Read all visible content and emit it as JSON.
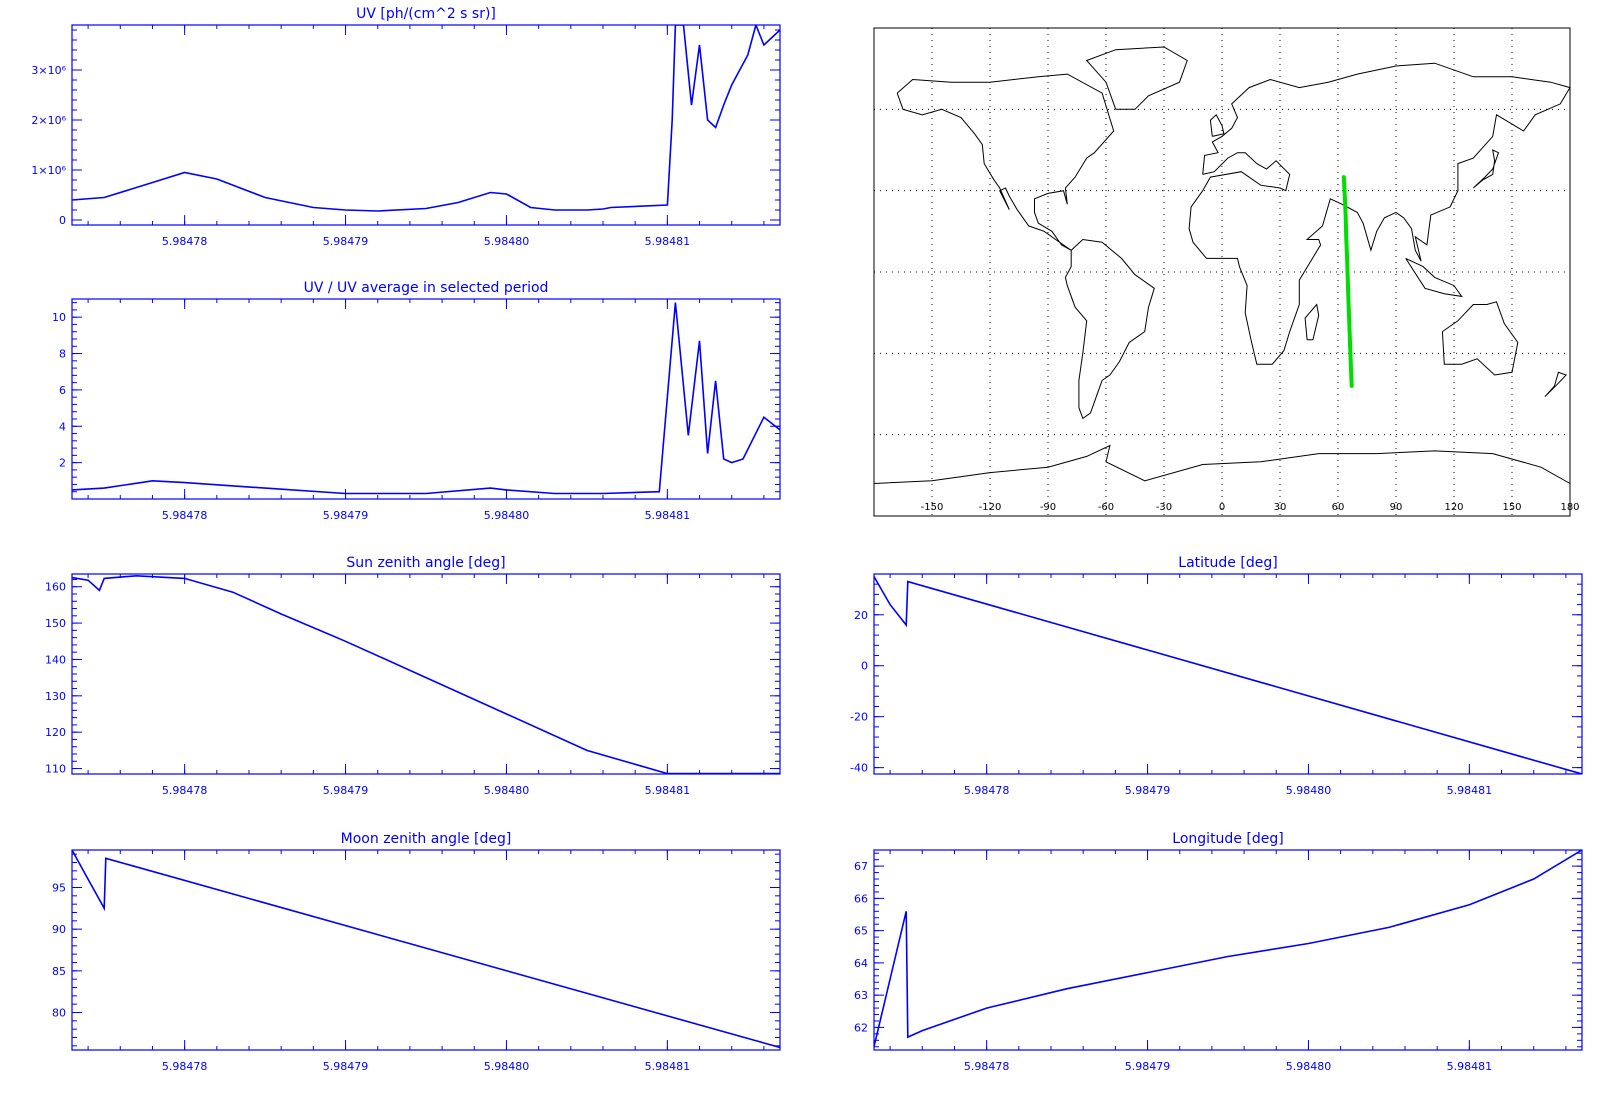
{
  "colors": {
    "axis": "#0000ff",
    "series": "#0000ff",
    "track": "#00dd00",
    "map": "#000000"
  },
  "chart_data": [
    {
      "type": "line",
      "title": "UV [ph/(cm^2 s sr)]",
      "xlim": [
        5.984773,
        5.984817
      ],
      "ylim": [
        -100000,
        3900000
      ],
      "xticks": [
        "5.98478",
        "5.98479",
        "5.98480",
        "5.98481"
      ],
      "xtick_values": [
        5.98478,
        5.98479,
        5.9848,
        5.98481
      ],
      "yticks": [
        "0",
        "1×10⁶",
        "2×10⁶",
        "3×10⁶"
      ],
      "ytick_values": [
        0,
        1000000,
        2000000,
        3000000
      ],
      "series": [
        {
          "x": [
            5.984773,
            5.984775,
            5.984778,
            5.98478,
            5.984782,
            5.984785,
            5.984788,
            5.98479,
            5.984792,
            5.984795,
            5.984797,
            5.984799,
            5.9848,
            5.9848015,
            5.984803,
            5.984805,
            5.984806,
            5.9848065,
            5.98481,
            5.9848103,
            5.9848105,
            5.984811,
            5.9848115,
            5.984812,
            5.9848125,
            5.984813,
            5.9848135,
            5.984814,
            5.984815,
            5.9848155,
            5.984816,
            5.984817
          ],
          "y": [
            400000,
            450000,
            750000,
            950000,
            820000,
            450000,
            250000,
            200000,
            180000,
            230000,
            350000,
            550000,
            520000,
            250000,
            200000,
            200000,
            220000,
            250000,
            300000,
            2000000,
            3900000,
            3900000,
            2300000,
            3500000,
            2000000,
            1850000,
            2300000,
            2700000,
            3300000,
            3900000,
            3500000,
            3800000
          ]
        }
      ]
    },
    {
      "type": "line",
      "title": "UV / UV average in selected period",
      "xlim": [
        5.984773,
        5.984817
      ],
      "ylim": [
        0,
        11
      ],
      "xticks": [
        "5.98478",
        "5.98479",
        "5.98480",
        "5.98481"
      ],
      "xtick_values": [
        5.98478,
        5.98479,
        5.9848,
        5.98481
      ],
      "yticks": [
        "2",
        "4",
        "6",
        "8",
        "10"
      ],
      "ytick_values": [
        2,
        4,
        6,
        8,
        10
      ],
      "series": [
        {
          "x": [
            5.984773,
            5.984775,
            5.984778,
            5.98478,
            5.984785,
            5.98479,
            5.984795,
            5.984799,
            5.9848,
            5.984803,
            5.984806,
            5.9848095,
            5.9848105,
            5.9848113,
            5.984812,
            5.9848125,
            5.984813,
            5.9848135,
            5.984814,
            5.9848147,
            5.984816,
            5.984817
          ],
          "y": [
            0.5,
            0.6,
            1.0,
            0.9,
            0.6,
            0.3,
            0.3,
            0.6,
            0.5,
            0.3,
            0.3,
            0.4,
            10.8,
            3.5,
            8.7,
            2.5,
            6.5,
            2.2,
            2.0,
            2.2,
            4.5,
            3.8
          ]
        }
      ]
    },
    {
      "type": "line",
      "title": "Sun zenith angle [deg]",
      "xlim": [
        5.984773,
        5.984817
      ],
      "ylim": [
        108.5,
        163.5
      ],
      "xticks": [
        "5.98478",
        "5.98479",
        "5.98480",
        "5.98481"
      ],
      "xtick_values": [
        5.98478,
        5.98479,
        5.9848,
        5.98481
      ],
      "yticks": [
        "110",
        "120",
        "130",
        "140",
        "150",
        "160"
      ],
      "ytick_values": [
        110,
        120,
        130,
        140,
        150,
        160
      ],
      "series": [
        {
          "x": [
            5.984773,
            5.984774,
            5.9847747,
            5.984775,
            5.984777,
            5.98478,
            5.984783,
            5.984786,
            5.98479,
            5.984795,
            5.9848,
            5.984805,
            5.98481,
            5.984817
          ],
          "y": [
            162.5,
            161.8,
            159,
            162.3,
            163,
            162.3,
            158.5,
            152.5,
            145,
            135,
            125,
            115,
            108.6,
            108.6
          ]
        }
      ]
    },
    {
      "type": "line",
      "title": "Latitude [deg]",
      "xlim": [
        5.984773,
        5.984817
      ],
      "ylim": [
        -42.5,
        36
      ],
      "xticks": [
        "5.98478",
        "5.98479",
        "5.98480",
        "5.98481"
      ],
      "xtick_values": [
        5.98478,
        5.98479,
        5.9848,
        5.98481
      ],
      "yticks": [
        "-40",
        "-20",
        "0",
        "20"
      ],
      "ytick_values": [
        -40,
        -20,
        0,
        20
      ],
      "series": [
        {
          "x": [
            5.984773,
            5.984774,
            5.984775,
            5.9847751,
            5.984817
          ],
          "y": [
            35,
            24,
            16,
            33,
            -42.5
          ]
        }
      ]
    },
    {
      "type": "line",
      "title": "Moon zenith angle [deg]",
      "xlim": [
        5.984773,
        5.984817
      ],
      "ylim": [
        75.5,
        99.5
      ],
      "xticks": [
        "5.98478",
        "5.98479",
        "5.98480",
        "5.98481"
      ],
      "xtick_values": [
        5.98478,
        5.98479,
        5.9848,
        5.98481
      ],
      "yticks": [
        "80",
        "85",
        "90",
        "95"
      ],
      "ytick_values": [
        80,
        85,
        90,
        95
      ],
      "series": [
        {
          "x": [
            5.984773,
            5.984774,
            5.984775,
            5.9847751,
            5.984817
          ],
          "y": [
            99.5,
            96,
            92.5,
            98.5,
            75.8
          ]
        }
      ]
    },
    {
      "type": "line",
      "title": "Longitude [deg]",
      "xlim": [
        5.984773,
        5.984817
      ],
      "ylim": [
        61.3,
        67.5
      ],
      "xticks": [
        "5.98478",
        "5.98479",
        "5.98480",
        "5.98481"
      ],
      "xtick_values": [
        5.98478,
        5.98479,
        5.9848,
        5.98481
      ],
      "yticks": [
        "62",
        "63",
        "64",
        "65",
        "66",
        "67"
      ],
      "ytick_values": [
        62,
        63,
        64,
        65,
        66,
        67
      ],
      "series": [
        {
          "x": [
            5.984773,
            5.984774,
            5.984775,
            5.9847751,
            5.984776,
            5.98478,
            5.984785,
            5.98479,
            5.984795,
            5.9848,
            5.984805,
            5.98481,
            5.984814,
            5.984817
          ],
          "y": [
            61.4,
            63.5,
            65.6,
            61.7,
            61.9,
            62.6,
            63.2,
            63.7,
            64.2,
            64.6,
            65.1,
            65.8,
            66.6,
            67.5
          ]
        }
      ]
    }
  ],
  "map": {
    "xlim": [
      -180,
      180
    ],
    "ylim": [
      -90,
      90
    ],
    "xticks": [
      "-150",
      "-120",
      "-90",
      "-60",
      "-30",
      "0",
      "30",
      "60",
      "90",
      "120",
      "150",
      "180"
    ],
    "xtick_values": [
      -150,
      -120,
      -90,
      -60,
      -30,
      0,
      30,
      60,
      90,
      120,
      150,
      180
    ],
    "grid": true,
    "track": {
      "lon": [
        63,
        63.5,
        64,
        64.3,
        64.7,
        65,
        65.4,
        65.8,
        66.2,
        66.6,
        67.1
      ],
      "lat": [
        35,
        28,
        20,
        12,
        5,
        -2,
        -10,
        -18,
        -26,
        -34,
        -42
      ]
    }
  }
}
